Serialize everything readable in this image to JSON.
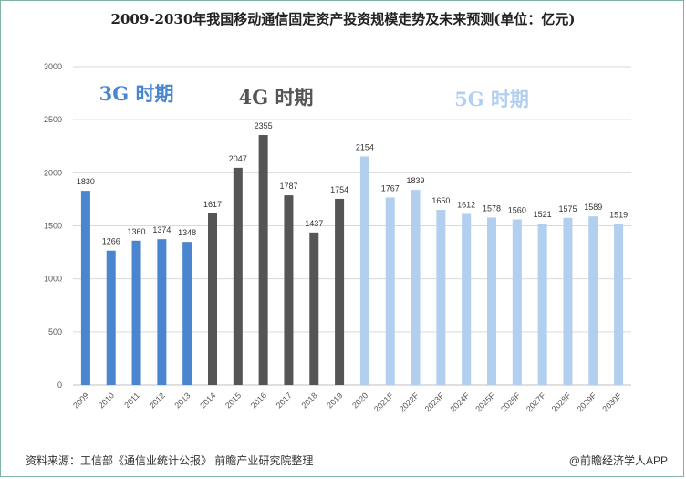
{
  "title": "2009-2030年我国移动通信固定资产投资规模走势及未来预测(单位：亿元)",
  "source": "资料来源：工信部《通信业统计公报》 前瞻产业研究院整理",
  "brand": "@前瞻经济学人APP",
  "colors": {
    "3G": "#4a86d0",
    "4G": "#555555",
    "5G": "#b3cff0",
    "axis": "#bfbfbf",
    "grid": "#d9d9d9"
  },
  "chart_data": {
    "type": "bar",
    "title": "2009-2030年我国移动通信固定资产投资规模走势及未来预测(单位：亿元)",
    "xlabel": "",
    "ylabel": "",
    "ylim": [
      0,
      3000
    ],
    "yticks": [
      0,
      500,
      1000,
      1500,
      2000,
      2500,
      3000
    ],
    "grid": true,
    "categories": [
      "2009",
      "2010",
      "2011",
      "2012",
      "2013",
      "2014",
      "2015",
      "2016",
      "2017",
      "2018",
      "2019",
      "2020",
      "2021F",
      "2022F",
      "2023F",
      "2024F",
      "2025F",
      "2026F",
      "2027F",
      "2028F",
      "2029F",
      "2030F"
    ],
    "values": [
      1830,
      1266,
      1360,
      1374,
      1348,
      1617,
      2047,
      2355,
      1787,
      1437,
      1754,
      2154,
      1767,
      1839,
      1650,
      1612,
      1578,
      1560,
      1521,
      1575,
      1589,
      1519
    ],
    "groups": [
      "3G",
      "3G",
      "3G",
      "3G",
      "3G",
      "4G",
      "4G",
      "4G",
      "4G",
      "4G",
      "4G",
      "5G",
      "5G",
      "5G",
      "5G",
      "5G",
      "5G",
      "5G",
      "5G",
      "5G",
      "5G",
      "5G"
    ],
    "period_labels": [
      {
        "group": "3G",
        "text": "3G 时期"
      },
      {
        "group": "4G",
        "text": "4G 时期"
      },
      {
        "group": "5G",
        "text": "5G 时期"
      }
    ]
  }
}
